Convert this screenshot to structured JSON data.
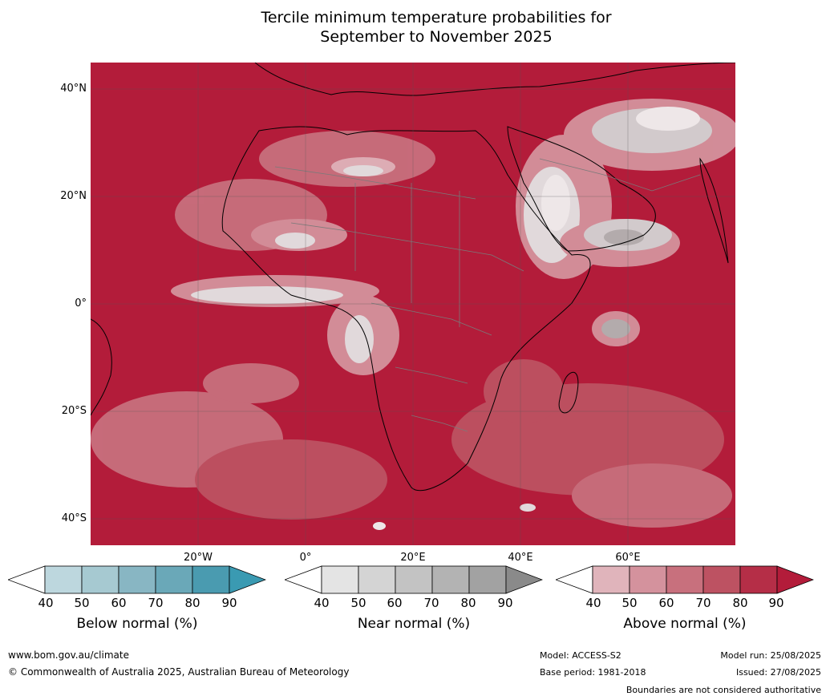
{
  "title_line1": "Tercile minimum temperature probabilities for",
  "title_line2": "September to November 2025",
  "lat_labels": [
    "40°N",
    "20°N",
    "0°",
    "20°S",
    "40°S"
  ],
  "lon_labels": [
    "20°W",
    "0°",
    "20°E",
    "40°E",
    "60°E"
  ],
  "colorbars": [
    {
      "label": "Below normal (%)",
      "ticks": [
        "40",
        "50",
        "60",
        "70",
        "80",
        "90"
      ],
      "colors": [
        "#bdd7de",
        "#a6c9d1",
        "#88b6c3",
        "#6aa8b8",
        "#4a9bb0"
      ],
      "extend_color": "#3a9ab2"
    },
    {
      "label": "Near normal (%)",
      "ticks": [
        "40",
        "50",
        "60",
        "70",
        "80",
        "90"
      ],
      "colors": [
        "#e4e4e4",
        "#d4d4d4",
        "#c3c3c3",
        "#b3b3b3",
        "#a2a2a2"
      ],
      "extend_color": "#8a8a8a"
    },
    {
      "label": "Above normal (%)",
      "ticks": [
        "40",
        "50",
        "60",
        "70",
        "80",
        "90"
      ],
      "colors": [
        "#e0b4bb",
        "#d4929d",
        "#c8707d",
        "#bd5262",
        "#b52e47"
      ],
      "extend_color": "#b31c3a"
    }
  ],
  "footer": {
    "website": "www.bom.gov.au/climate",
    "copyright": "© Commonwealth of Australia 2025, Australian Bureau of Meteorology",
    "model": "Model: ACCESS-S2",
    "base_period": "Base period: 1981-2018",
    "model_run": "Model run: 25/08/2025",
    "issued": "Issued: 27/08/2025",
    "disclaimer": "Boundaries are not considered authoritative"
  },
  "map_colors": {
    "sea": "#b31c3a",
    "land": "#b52e47",
    "light": "#d4929d",
    "grey": "#d4d4d4",
    "white": "#f2f2f2"
  }
}
